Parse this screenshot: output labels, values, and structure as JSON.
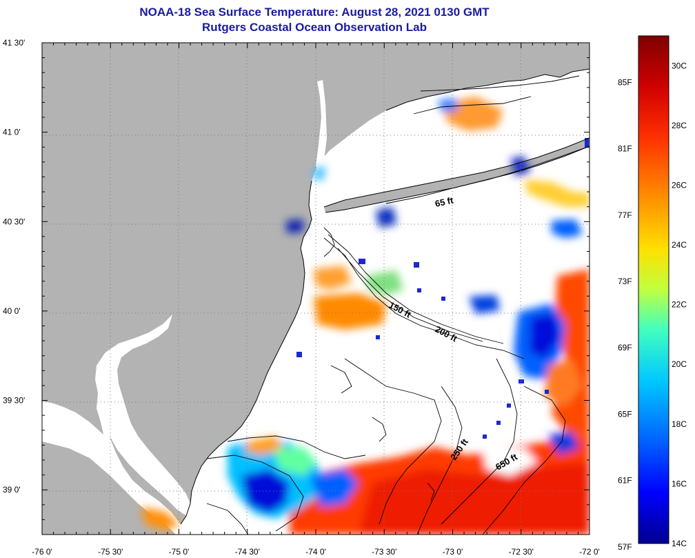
{
  "header": {
    "title": "NOAA-18 Sea Surface Temperature:  August 28, 2021 0130 GMT",
    "subtitle": "Rutgers Coastal Ocean Observation Lab"
  },
  "map": {
    "lon_labels": [
      "-76 0'",
      "-75 30'",
      "-75 0'",
      "-74 30'",
      "-74 0'",
      "-73 30'",
      "-73 0'",
      "-72 30'",
      "-72 0'"
    ],
    "lat_labels": [
      "41 30'",
      "41 0'",
      "40 30'",
      "40 0'",
      "39 30'",
      "39 0'"
    ],
    "lon_range": [
      -76.0,
      -72.0
    ],
    "lat_range": [
      38.75,
      41.5
    ],
    "grid": "dotted",
    "depth_contours": [
      "65 ft",
      "150 ft",
      "200 ft",
      "250 ft",
      "650 ft"
    ],
    "colors": {
      "land": "#b3b3b3",
      "cloud_or_nodata": "#ffffff",
      "coastline": "#000000"
    }
  },
  "colorbar": {
    "fahrenheit_labels": [
      "85F",
      "81F",
      "77F",
      "73F",
      "69F",
      "65F",
      "61F",
      "57F"
    ],
    "celsius_labels": [
      "30C",
      "28C",
      "26C",
      "24C",
      "22C",
      "20C",
      "18C",
      "16C",
      "14C"
    ],
    "range_c": [
      14,
      31
    ],
    "gradient": [
      "#00008f",
      "#0000ff",
      "#0060ff",
      "#00c8ff",
      "#40ffc0",
      "#c0ff40",
      "#ffe000",
      "#ff9000",
      "#ff3000",
      "#d00000",
      "#800000"
    ]
  }
}
